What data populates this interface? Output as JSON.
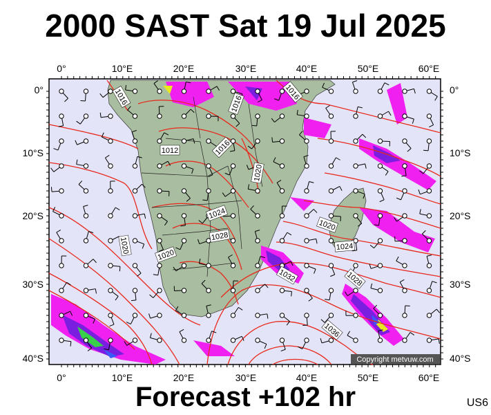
{
  "title": "2000 SAST Sat 19 Jul 2025",
  "footer": "Forecast +102 hr",
  "region_code": "US6",
  "copyright": "Copyright metvuw.com",
  "axes": {
    "lon_labels": [
      "0°",
      "10°E",
      "20°E",
      "30°E",
      "40°E",
      "50°E",
      "60°E"
    ],
    "lat_labels": [
      "0°",
      "10°S",
      "20°S",
      "30°S",
      "40°S"
    ]
  },
  "isobars": [
    "1016",
    "1016",
    "1016",
    "1016",
    "1012",
    "1024",
    "1028",
    "1020",
    "1020",
    "1024",
    "1032",
    "1028",
    "1036",
    "1020",
    "1020"
  ],
  "colors": {
    "ocean": "#e4e4f8",
    "land": "#a9bda0",
    "isobar": "#e8281c",
    "rain_magenta": "#f020f0",
    "rain_purple": "#7a1ee0",
    "rain_blue": "#3a5aff",
    "rain_green": "#38d048",
    "rain_yellow": "#e8e820"
  }
}
